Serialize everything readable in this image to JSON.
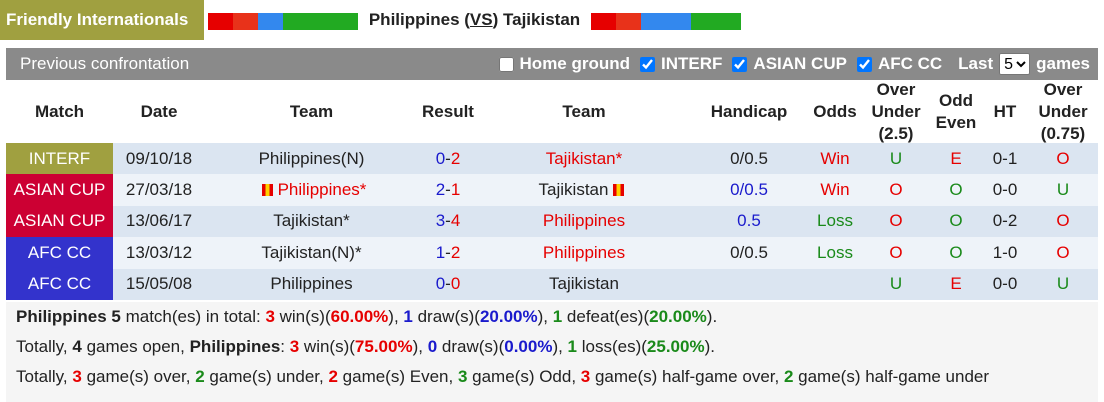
{
  "header": {
    "title": "Friendly Internationals",
    "home": "Philippines",
    "vs": "VS",
    "away": "Tajikistan"
  },
  "toolbar": {
    "title": "Previous confrontation",
    "filters": [
      {
        "label": "Home ground",
        "checked": false
      },
      {
        "label": "INTERF",
        "checked": true
      },
      {
        "label": "ASIAN CUP",
        "checked": true
      },
      {
        "label": "AFC CC",
        "checked": true
      }
    ],
    "last": "Last",
    "count": "5",
    "games": "games"
  },
  "table": {
    "columns": [
      "Match",
      "Date",
      "Team",
      "Result",
      "Team",
      "Handicap",
      "Odds",
      "Over Under (2.5)",
      "Odd Even",
      "HT",
      "Over Under (0.75)"
    ],
    "rows": [
      {
        "match": "INTERF",
        "match_color": "#a0a040",
        "date": "09/10/18",
        "home": "Philippines(N)",
        "home_score": "0",
        "away_score": "2",
        "away": "Tajikistan*",
        "highlight": "away",
        "handicap": "0/0.5",
        "odds": "Win",
        "over_under": "U",
        "odd_even": "E",
        "ht": "0-1",
        "over_under_half": "O"
      },
      {
        "match": "ASIAN CUP",
        "match_color": "#cc0033",
        "date": "27/03/18",
        "home": "Philippines*",
        "home_flag": true,
        "home_score": "2",
        "away_score": "1",
        "away": "Tajikistan",
        "away_flag": true,
        "highlight": "home",
        "handicap": "0/0.5",
        "handicap_highlight": true,
        "odds": "Win",
        "over_under": "O",
        "odd_even": "O",
        "ht": "0-0",
        "over_under_half": "U"
      },
      {
        "match": "ASIAN CUP",
        "match_color": "#cc0033",
        "date": "13/06/17",
        "home": "Tajikistan*",
        "home_score": "3",
        "away_score": "4",
        "away": "Philippines",
        "highlight": "away",
        "handicap": "0.5",
        "handicap_highlight": true,
        "odds": "Loss",
        "over_under": "O",
        "odd_even": "O",
        "ht": "0-2",
        "over_under_half": "O"
      },
      {
        "match": "AFC CC",
        "match_color": "#3333cc",
        "date": "13/03/12",
        "home": "Tajikistan(N)*",
        "home_score": "1",
        "away_score": "2",
        "away": "Philippines",
        "highlight": "away",
        "handicap": "0/0.5",
        "odds": "Loss",
        "over_under": "O",
        "odd_even": "O",
        "ht": "1-0",
        "over_under_half": "O"
      },
      {
        "match": "AFC CC",
        "match_color": "#3333cc",
        "date": "15/05/08",
        "home": "Philippines",
        "home_score": "0",
        "away_score": "0",
        "away": "Tajikistan",
        "handicap": null,
        "odds": null,
        "over_under": "U",
        "odd_even": "E",
        "ht": "0-0",
        "over_under_half": "U"
      }
    ]
  },
  "summary": [
    [
      {
        "text": "Philippines",
        "style": "bold"
      },
      {
        "text": " 5",
        "style": "bold"
      },
      {
        "text": " match(es) in total: "
      },
      {
        "text": "3",
        "style": "red"
      },
      {
        "text": " win(s)("
      },
      {
        "text": "60.00%",
        "style": "red"
      },
      {
        "text": "), "
      },
      {
        "text": "1",
        "style": "blue"
      },
      {
        "text": " draw(s)("
      },
      {
        "text": "20.00%",
        "style": "blue"
      },
      {
        "text": "), "
      },
      {
        "text": "1",
        "style": "green"
      },
      {
        "text": " defeat(es)("
      },
      {
        "text": "20.00%",
        "style": "green"
      },
      {
        "text": ")."
      }
    ],
    [
      {
        "text": "Totally, "
      },
      {
        "text": "4",
        "style": "bold"
      },
      {
        "text": " games open, "
      },
      {
        "text": "Philippines",
        "style": "bold"
      },
      {
        "text": ": "
      },
      {
        "text": "3",
        "style": "red"
      },
      {
        "text": " win(s)("
      },
      {
        "text": "75.00%",
        "style": "red"
      },
      {
        "text": "), "
      },
      {
        "text": "0",
        "style": "blue"
      },
      {
        "text": " draw(s)("
      },
      {
        "text": "0.00%",
        "style": "blue"
      },
      {
        "text": "), "
      },
      {
        "text": "1",
        "style": "green"
      },
      {
        "text": " loss(es)("
      },
      {
        "text": "25.00%",
        "style": "green"
      },
      {
        "text": ")."
      }
    ],
    [
      {
        "text": "Totally, "
      },
      {
        "text": "3",
        "style": "red"
      },
      {
        "text": " game(s) over, "
      },
      {
        "text": "2",
        "style": "green"
      },
      {
        "text": " game(s) under, "
      },
      {
        "text": "2",
        "style": "red"
      },
      {
        "text": " game(s) Even, "
      },
      {
        "text": "3",
        "style": "green"
      },
      {
        "text": " game(s) Odd, "
      },
      {
        "text": "3",
        "style": "red"
      },
      {
        "text": " game(s) half-game over, "
      },
      {
        "text": "2",
        "style": "green"
      },
      {
        "text": " game(s) half-game under"
      }
    ]
  ]
}
